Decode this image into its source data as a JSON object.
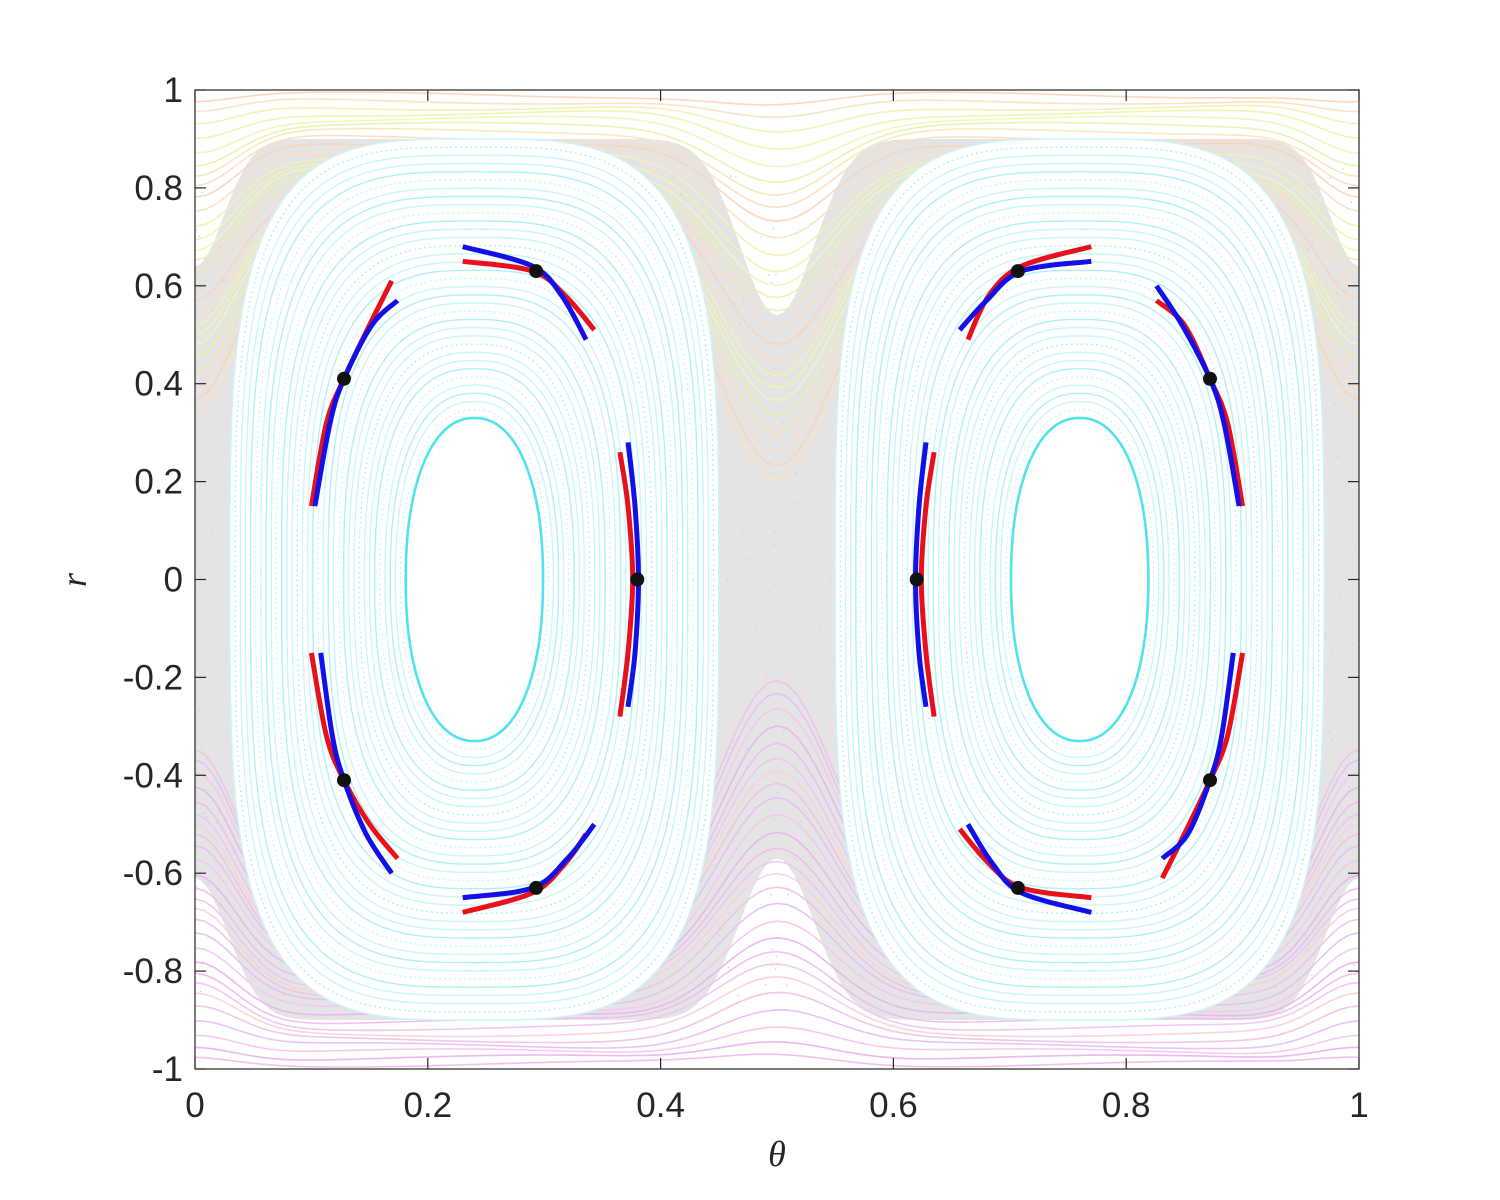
{
  "chart_data": {
    "type": "scatter",
    "title": "",
    "xlabel": "θ",
    "ylabel": "r",
    "xlim": [
      0,
      1
    ],
    "ylim": [
      -1,
      1
    ],
    "grid": false,
    "x_ticks": [
      0,
      0.2,
      0.4,
      0.6,
      0.8,
      1
    ],
    "x_tick_labels": [
      "0",
      "0.2",
      "0.4",
      "0.6",
      "0.8",
      "1"
    ],
    "y_ticks": [
      -1,
      -0.8,
      -0.6,
      -0.4,
      -0.2,
      0,
      0.2,
      0.4,
      0.6,
      0.8,
      1
    ],
    "y_tick_labels": [
      "-1",
      "-0.8",
      "-0.6",
      "-0.4",
      "-0.2",
      "0",
      "0.2",
      "0.4",
      "0.6",
      "0.8",
      "1"
    ],
    "background_chaotic_sea": {
      "color": "#e4e4e4",
      "description_level": "gray chaotic region"
    },
    "island_centers": [
      [
        0.24,
        0
      ],
      [
        0.76,
        0
      ]
    ],
    "island_inner_boundary": {
      "half_width": 0.059,
      "half_height": 0.33,
      "color": "#4fe3ec"
    },
    "island_outer_boundary": {
      "half_width": 0.21,
      "half_height": 0.9
    },
    "orbit_points": [
      [
        0.38,
        0
      ],
      [
        0.293,
        0.63
      ],
      [
        0.128,
        0.41
      ],
      [
        0.128,
        -0.41
      ],
      [
        0.293,
        -0.63
      ],
      [
        0.62,
        0
      ],
      [
        0.707,
        0.63
      ],
      [
        0.872,
        0.41
      ],
      [
        0.872,
        -0.41
      ],
      [
        0.707,
        -0.63
      ]
    ],
    "series": [
      {
        "color": "#e8101a",
        "segments": [
          [
            [
              0.365,
              0.26
            ],
            [
              0.372,
              0.15
            ],
            [
              0.376,
              0
            ],
            [
              0.372,
              -0.15
            ],
            [
              0.365,
              -0.28
            ]
          ],
          [
            [
              0.23,
              0.65
            ],
            [
              0.29,
              0.63
            ],
            [
              0.318,
              0.58
            ],
            [
              0.343,
              0.51
            ]
          ],
          [
            [
              0.1,
              0.15
            ],
            [
              0.113,
              0.32
            ],
            [
              0.128,
              0.41
            ],
            [
              0.15,
              0.52
            ],
            [
              0.169,
              0.61
            ]
          ],
          [
            [
              0.1,
              -0.15
            ],
            [
              0.113,
              -0.32
            ],
            [
              0.128,
              -0.41
            ],
            [
              0.15,
              -0.5
            ],
            [
              0.174,
              -0.57
            ]
          ],
          [
            [
              0.23,
              -0.68
            ],
            [
              0.29,
              -0.64
            ],
            [
              0.318,
              -0.58
            ],
            [
              0.336,
              -0.52
            ]
          ],
          [
            [
              0.635,
              0.26
            ],
            [
              0.628,
              0.15
            ],
            [
              0.624,
              0
            ],
            [
              0.628,
              -0.15
            ],
            [
              0.635,
              -0.28
            ]
          ],
          [
            [
              0.77,
              0.68
            ],
            [
              0.71,
              0.64
            ],
            [
              0.682,
              0.58
            ],
            [
              0.664,
              0.49
            ]
          ],
          [
            [
              0.9,
              0.15
            ],
            [
              0.887,
              0.32
            ],
            [
              0.872,
              0.41
            ],
            [
              0.85,
              0.52
            ],
            [
              0.826,
              0.57
            ]
          ],
          [
            [
              0.9,
              -0.15
            ],
            [
              0.887,
              -0.32
            ],
            [
              0.872,
              -0.41
            ],
            [
              0.85,
              -0.52
            ],
            [
              0.831,
              -0.61
            ]
          ],
          [
            [
              0.77,
              -0.65
            ],
            [
              0.71,
              -0.63
            ],
            [
              0.682,
              -0.58
            ],
            [
              0.657,
              -0.51
            ]
          ]
        ]
      },
      {
        "color": "#1210e8",
        "segments": [
          [
            [
              0.372,
              0.28
            ],
            [
              0.378,
              0.15
            ],
            [
              0.381,
              0
            ],
            [
              0.378,
              -0.15
            ],
            [
              0.372,
              -0.26
            ]
          ],
          [
            [
              0.23,
              0.68
            ],
            [
              0.29,
              0.64
            ],
            [
              0.315,
              0.58
            ],
            [
              0.336,
              0.49
            ]
          ],
          [
            [
              0.103,
              0.15
            ],
            [
              0.116,
              0.32
            ],
            [
              0.128,
              0.41
            ],
            [
              0.152,
              0.52
            ],
            [
              0.174,
              0.57
            ]
          ],
          [
            [
              0.108,
              -0.15
            ],
            [
              0.118,
              -0.32
            ],
            [
              0.128,
              -0.41
            ],
            [
              0.147,
              -0.52
            ],
            [
              0.169,
              -0.6
            ]
          ],
          [
            [
              0.23,
              -0.65
            ],
            [
              0.29,
              -0.63
            ],
            [
              0.32,
              -0.57
            ],
            [
              0.343,
              -0.5
            ]
          ],
          [
            [
              0.628,
              0.28
            ],
            [
              0.622,
              0.15
            ],
            [
              0.619,
              0
            ],
            [
              0.622,
              -0.15
            ],
            [
              0.628,
              -0.26
            ]
          ],
          [
            [
              0.77,
              0.65
            ],
            [
              0.71,
              0.63
            ],
            [
              0.68,
              0.57
            ],
            [
              0.657,
              0.51
            ]
          ],
          [
            [
              0.897,
              0.15
            ],
            [
              0.884,
              0.32
            ],
            [
              0.872,
              0.41
            ],
            [
              0.848,
              0.52
            ],
            [
              0.826,
              0.6
            ]
          ],
          [
            [
              0.892,
              -0.15
            ],
            [
              0.882,
              -0.32
            ],
            [
              0.872,
              -0.41
            ],
            [
              0.853,
              -0.52
            ],
            [
              0.831,
              -0.57
            ]
          ],
          [
            [
              0.77,
              -0.68
            ],
            [
              0.71,
              -0.64
            ],
            [
              0.685,
              -0.58
            ],
            [
              0.664,
              -0.5
            ]
          ]
        ]
      }
    ]
  }
}
